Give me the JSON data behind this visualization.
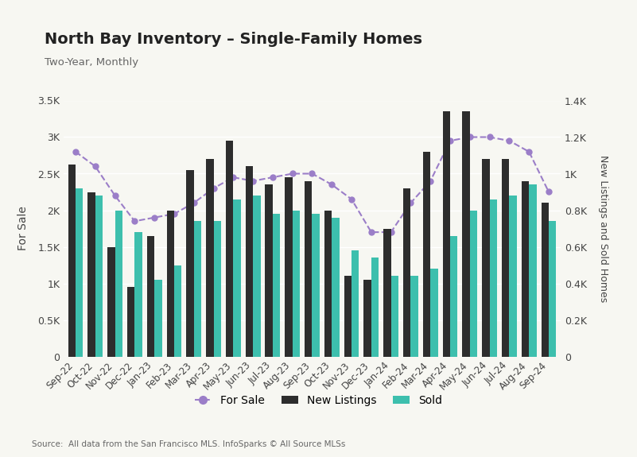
{
  "title": "North Bay Inventory – Single-Family Homes",
  "subtitle": "Two-Year, Monthly",
  "source": "Source:  All data from the San Francisco MLS. InfoSparks © All Source MLSs",
  "categories": [
    "Sep-22",
    "Oct-22",
    "Nov-22",
    "Dec-22",
    "Jan-23",
    "Feb-23",
    "Mar-23",
    "Apr-23",
    "May-23",
    "Jun-23",
    "Jul-23",
    "Aug-23",
    "Sep-23",
    "Oct-23",
    "Nov-23",
    "Dec-23",
    "Jan-24",
    "Feb-24",
    "Mar-24",
    "Apr-24",
    "May-24",
    "Jun-24",
    "Jul-24",
    "Aug-24",
    "Sep-24"
  ],
  "for_sale": [
    2800,
    2600,
    2200,
    1850,
    1900,
    1950,
    2100,
    2300,
    2450,
    2400,
    2450,
    2500,
    2500,
    2350,
    2150,
    1700,
    1700,
    2100,
    2400,
    2950,
    3000,
    3000,
    2950,
    2800,
    2250
  ],
  "new_listings": [
    1050,
    900,
    600,
    380,
    660,
    800,
    1020,
    1080,
    1180,
    1040,
    940,
    980,
    960,
    800,
    440,
    420,
    700,
    920,
    1120,
    1340,
    1340,
    1080,
    1080,
    960,
    840
  ],
  "sold": [
    920,
    880,
    800,
    680,
    420,
    500,
    740,
    740,
    860,
    880,
    780,
    800,
    780,
    760,
    580,
    540,
    440,
    440,
    480,
    660,
    800,
    860,
    880,
    940,
    740
  ],
  "for_sale_color": "#9b7ec8",
  "new_listings_color": "#2d2d2d",
  "sold_color": "#3dbfad",
  "background_color": "#f7f7f2",
  "plot_bg_color": "#f7f7f2",
  "ylim_left": [
    0,
    3500
  ],
  "ylim_right": [
    0,
    1400
  ],
  "ylabel_left": "For Sale",
  "ylabel_right": "New Listings and Sold Homes",
  "left_ticks": [
    0,
    500,
    1000,
    1500,
    2000,
    2500,
    3000,
    3500
  ],
  "left_tick_labels": [
    "0",
    "0.5K",
    "1K",
    "1.5K",
    "2K",
    "2.5K",
    "3K",
    "3.5K"
  ],
  "right_ticks": [
    0,
    200,
    400,
    600,
    800,
    1000,
    1200,
    1400
  ],
  "right_tick_labels": [
    "0",
    "0.2K",
    "0.4K",
    "0.6K",
    "0.8K",
    "1K",
    "1.2K",
    "1.4K"
  ]
}
